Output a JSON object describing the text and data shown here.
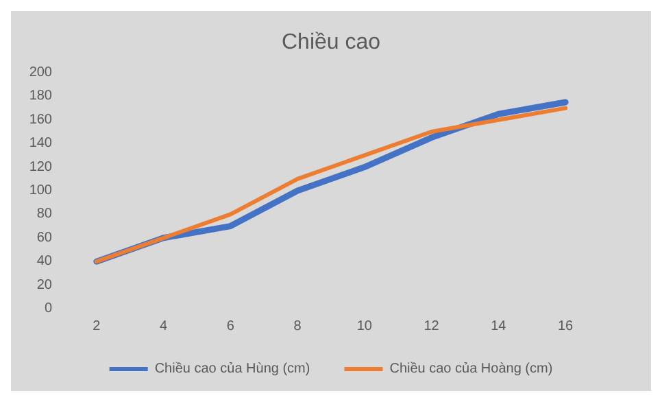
{
  "chart_data": {
    "type": "line",
    "title": "Chiều cao",
    "categories": [
      "2",
      "4",
      "6",
      "8",
      "10",
      "12",
      "14",
      "16"
    ],
    "series": [
      {
        "name": "Chiều cao của Hùng (cm)",
        "color": "#4472c4",
        "values": [
          40,
          60,
          70,
          100,
          120,
          145,
          165,
          175
        ]
      },
      {
        "name": "Chiều cao của Hoàng (cm)",
        "color": "#ed7d31",
        "values": [
          40,
          60,
          80,
          110,
          130,
          150,
          160,
          170
        ]
      }
    ],
    "ylim": [
      0,
      200
    ],
    "yticks": [
      0,
      20,
      40,
      60,
      80,
      100,
      120,
      140,
      160,
      180,
      200
    ],
    "grid": false,
    "legend": "bottom",
    "marker": "none",
    "line_style": "solid"
  }
}
